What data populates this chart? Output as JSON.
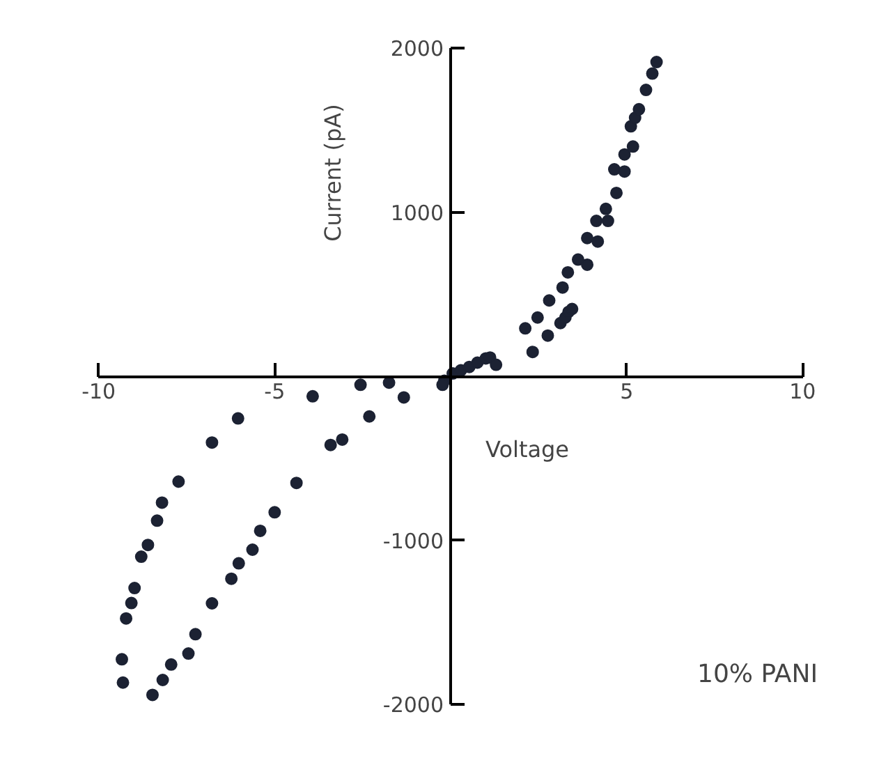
{
  "chart_data": {
    "type": "scatter",
    "xlabel": "Voltage",
    "ylabel": "Current (pA)",
    "x": [
      -0.18,
      0.06,
      0.29,
      0.53,
      0.76,
      1.0,
      1.12,
      1.29,
      2.12,
      2.33,
      2.47,
      2.76,
      2.8,
      3.12,
      3.18,
      3.26,
      3.35,
      3.45,
      3.33,
      3.62,
      3.88,
      3.88,
      4.18,
      4.14,
      4.47,
      4.41,
      4.71,
      4.65,
      4.94,
      4.94,
      5.18,
      5.12,
      5.24,
      5.35,
      5.55,
      5.73,
      5.85,
      -0.23,
      -1.33,
      -1.75,
      -2.31,
      -2.56,
      -3.08,
      -3.41,
      -3.92,
      -4.38,
      -5.0,
      -5.41,
      -5.63,
      -6.02,
      -6.23,
      -6.78,
      -7.25,
      -7.45,
      -7.94,
      -8.18,
      -8.47,
      -9.31,
      -9.34,
      -9.22,
      -9.07,
      -8.98,
      -8.79,
      -8.6,
      -8.34,
      -8.2,
      -7.73,
      -6.78,
      -6.04
    ],
    "values": [
      -26,
      18,
      37,
      58,
      84,
      110,
      115,
      71,
      293,
      149,
      359,
      249,
      463,
      325,
      542,
      359,
      393,
      411,
      634,
      712,
      681,
      843,
      822,
      948,
      948,
      1021,
      1118,
      1262,
      1249,
      1353,
      1401,
      1524,
      1576,
      1628,
      1746,
      1846,
      1916,
      -51,
      -128,
      -38,
      -244,
      -51,
      -385,
      -418,
      -121,
      -649,
      -828,
      -941,
      -1056,
      -1139,
      -1233,
      -1383,
      -1571,
      -1689,
      -1756,
      -1850,
      -1941,
      -1866,
      -1724,
      -1475,
      -1381,
      -1290,
      -1099,
      -1027,
      -879,
      -769,
      -641,
      -403,
      -256
    ],
    "color": "#1c2233",
    "marker": "circle",
    "xlim": [
      -10,
      10
    ],
    "ylim": [
      -2000,
      2000
    ],
    "xticks": [
      -10,
      -5,
      5,
      10
    ],
    "yticks": [
      -2000,
      -1000,
      1000,
      2000
    ],
    "grid": false,
    "annotations": [
      "10% PANI"
    ]
  }
}
